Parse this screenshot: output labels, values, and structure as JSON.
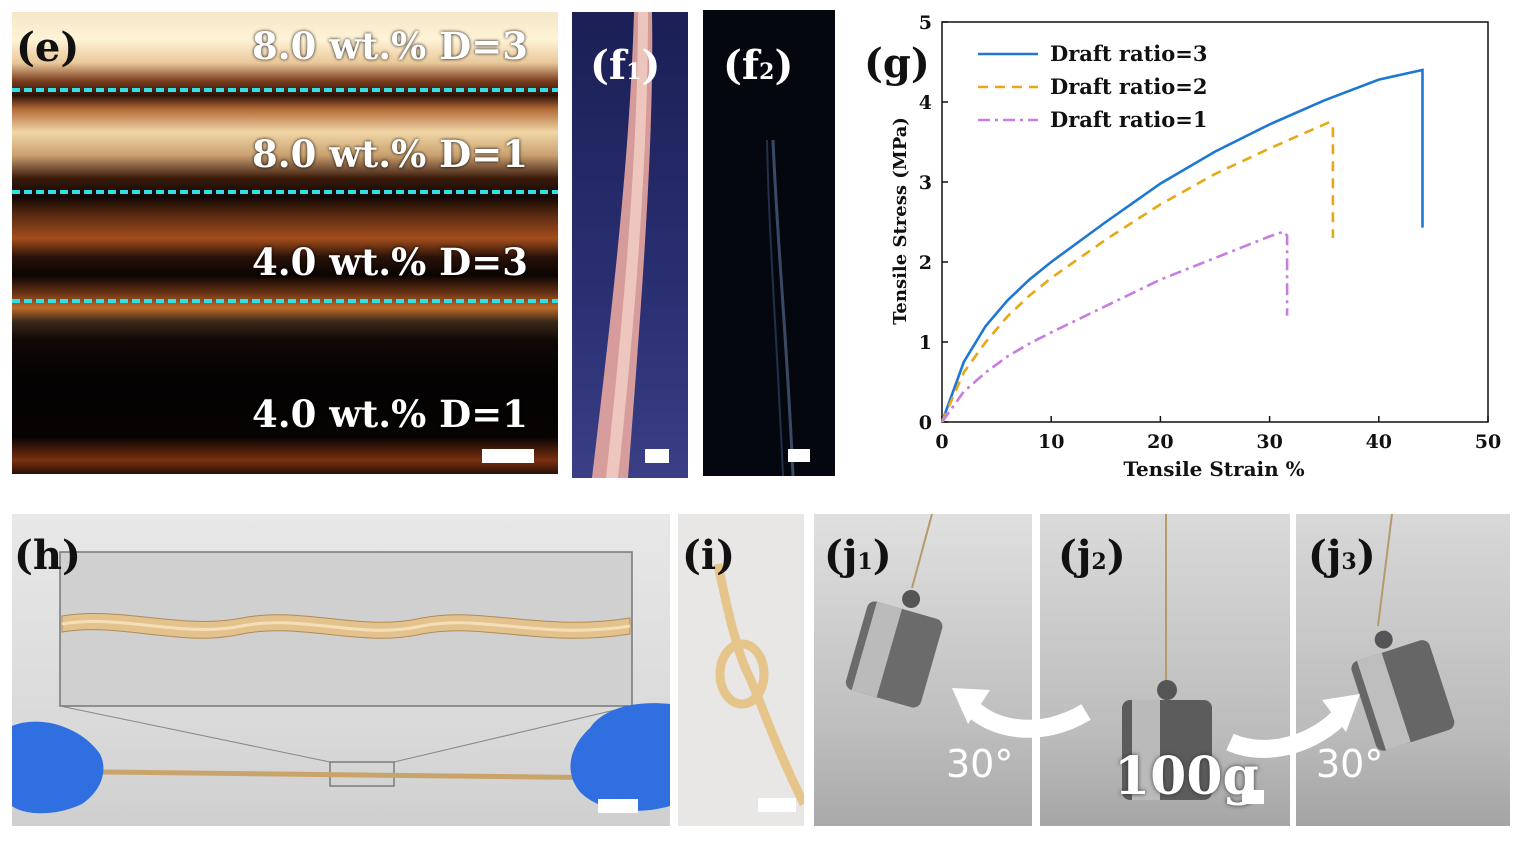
{
  "panels": {
    "e": {
      "label": "(e)",
      "rows": [
        "8.0 wt.% D=3",
        "8.0 wt.% D=1",
        "4.0 wt.% D=3",
        "4.0 wt.% D=1"
      ],
      "divider_color": "#2fe0e6"
    },
    "f1": {
      "label_main": "(f",
      "label_sub": "1",
      "label_end": ")"
    },
    "f2": {
      "label_main": "(f",
      "label_sub": "2",
      "label_end": ")"
    },
    "g": {
      "label": "(g)"
    },
    "h": {
      "label": "(h)"
    },
    "i": {
      "label": "(i)"
    },
    "j1": {
      "label_main": "(j",
      "label_sub": "1",
      "label_end": ")",
      "angle": "30°"
    },
    "j2": {
      "label_main": "(j",
      "label_sub": "2",
      "label_end": ")",
      "weight": "100g"
    },
    "j3": {
      "label_main": "(j",
      "label_sub": "3",
      "label_end": ")",
      "angle": "30°"
    }
  },
  "chart_data": {
    "type": "line",
    "xlabel": "Tensile Strain %",
    "ylabel": "Tensile Stress (MPa)",
    "xlim": [
      0,
      50
    ],
    "ylim": [
      0,
      5
    ],
    "xticks": [
      0,
      10,
      20,
      30,
      40,
      50
    ],
    "yticks": [
      0,
      1,
      2,
      3,
      4,
      5
    ],
    "legend_position": "top-left",
    "grid": false,
    "series": [
      {
        "name": "Draft ratio=3",
        "color": "#1f77d4",
        "style": "solid",
        "x": [
          0,
          2,
          4,
          6,
          8,
          10,
          15,
          20,
          25,
          30,
          35,
          40,
          44,
          44
        ],
        "y": [
          0,
          0.75,
          1.2,
          1.52,
          1.78,
          2.0,
          2.5,
          2.98,
          3.38,
          3.72,
          4.02,
          4.28,
          4.4,
          2.43
        ]
      },
      {
        "name": "Draft ratio=2",
        "color": "#e6a817",
        "style": "dashed",
        "x": [
          0,
          2,
          4,
          6,
          8,
          10,
          15,
          20,
          25,
          30,
          35.5,
          35.8,
          35.8
        ],
        "y": [
          0,
          0.62,
          1.0,
          1.32,
          1.58,
          1.8,
          2.28,
          2.72,
          3.1,
          3.42,
          3.75,
          3.7,
          2.3
        ]
      },
      {
        "name": "Draft ratio=1",
        "color": "#c77ee0",
        "style": "dashdot",
        "x": [
          0,
          2,
          4,
          6,
          8,
          10,
          15,
          20,
          25,
          30,
          31.3,
          31.6,
          31.6
        ],
        "y": [
          0,
          0.38,
          0.62,
          0.82,
          0.98,
          1.12,
          1.45,
          1.78,
          2.05,
          2.32,
          2.38,
          2.33,
          1.33
        ]
      }
    ]
  }
}
